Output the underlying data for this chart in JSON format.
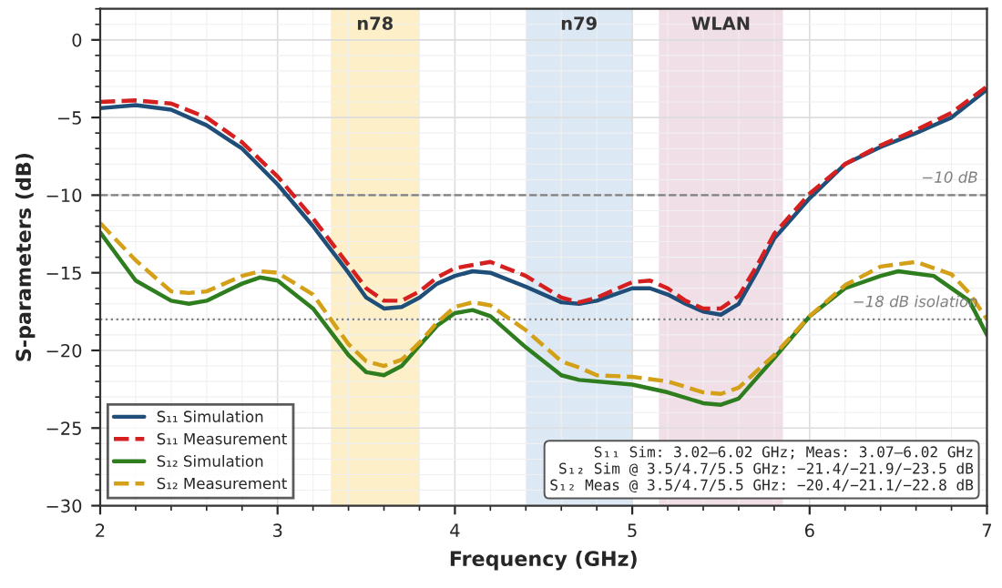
{
  "chart_data": {
    "type": "line",
    "xlabel": "Frequency (GHz)",
    "ylabel": "S-parameters (dB)",
    "xlim": [
      2,
      7
    ],
    "xticks": [
      2,
      3,
      4,
      5,
      6,
      7
    ],
    "ylim": [
      -30,
      2
    ],
    "yticks": [
      0,
      -5,
      -10,
      -15,
      -20,
      -25,
      -30
    ],
    "grid": true,
    "legend": "bottom left",
    "series": [
      {
        "name": "S₁₁ Simulation",
        "color": "#1f4e79",
        "line_style": "solid",
        "x": [
          2.0,
          2.2,
          2.4,
          2.6,
          2.8,
          3.0,
          3.2,
          3.4,
          3.5,
          3.6,
          3.7,
          3.8,
          3.9,
          4.0,
          4.1,
          4.2,
          4.4,
          4.6,
          4.7,
          4.8,
          5.0,
          5.1,
          5.2,
          5.3,
          5.4,
          5.5,
          5.6,
          5.7,
          5.8,
          6.0,
          6.2,
          6.4,
          6.6,
          6.8,
          7.0
        ],
        "values": [
          -4.4,
          -4.2,
          -4.5,
          -5.5,
          -7.0,
          -9.3,
          -12,
          -15,
          -16.6,
          -17.3,
          -17.2,
          -16.6,
          -15.7,
          -15.2,
          -14.9,
          -15.0,
          -15.9,
          -16.9,
          -17.0,
          -16.8,
          -16.0,
          -16.0,
          -16.4,
          -17.0,
          -17.5,
          -17.7,
          -17.0,
          -15.0,
          -12.8,
          -10.2,
          -8.0,
          -6.9,
          -6.0,
          -5.0,
          -3.2
        ]
      },
      {
        "name": "S₁₁ Measurement",
        "color": "#d62020",
        "line_style": "dashed",
        "x": [
          2.0,
          2.2,
          2.4,
          2.6,
          2.8,
          3.0,
          3.2,
          3.4,
          3.5,
          3.6,
          3.7,
          3.8,
          3.9,
          4.0,
          4.2,
          4.4,
          4.6,
          4.7,
          4.8,
          5.0,
          5.1,
          5.2,
          5.3,
          5.4,
          5.5,
          5.6,
          5.7,
          5.8,
          6.0,
          6.2,
          6.4,
          6.6,
          6.8,
          7.0
        ],
        "values": [
          -4.0,
          -3.9,
          -4.1,
          -5.0,
          -6.6,
          -8.8,
          -11.5,
          -14.5,
          -16.0,
          -16.8,
          -16.8,
          -16.2,
          -15.3,
          -14.7,
          -14.3,
          -15.2,
          -16.6,
          -16.9,
          -16.6,
          -15.6,
          -15.5,
          -16.0,
          -16.8,
          -17.3,
          -17.3,
          -16.5,
          -14.6,
          -12.5,
          -9.9,
          -8.0,
          -6.8,
          -5.8,
          -4.7,
          -3.0
        ]
      },
      {
        "name": "S₁₂ Simulation",
        "color": "#2e7d1e",
        "line_style": "solid",
        "x": [
          2.0,
          2.2,
          2.4,
          2.5,
          2.6,
          2.8,
          2.9,
          3.0,
          3.2,
          3.4,
          3.5,
          3.6,
          3.7,
          3.8,
          3.9,
          4.0,
          4.1,
          4.2,
          4.4,
          4.6,
          4.7,
          4.9,
          5.0,
          5.2,
          5.4,
          5.5,
          5.6,
          5.8,
          6.0,
          6.2,
          6.4,
          6.5,
          6.7,
          6.9,
          7.0
        ],
        "values": [
          -12.4,
          -15.5,
          -16.8,
          -17.0,
          -16.8,
          -15.7,
          -15.3,
          -15.5,
          -17.3,
          -20.3,
          -21.4,
          -21.6,
          -21.0,
          -19.7,
          -18.4,
          -17.6,
          -17.4,
          -17.8,
          -19.8,
          -21.6,
          -21.9,
          -22.1,
          -22.2,
          -22.7,
          -23.4,
          -23.5,
          -23.1,
          -20.5,
          -17.8,
          -16.0,
          -15.2,
          -14.9,
          -15.2,
          -16.8,
          -19.0
        ]
      },
      {
        "name": "S₁₂ Measurement",
        "color": "#d4a017",
        "line_style": "dashed",
        "x": [
          2.0,
          2.2,
          2.4,
          2.5,
          2.6,
          2.8,
          2.9,
          3.0,
          3.2,
          3.4,
          3.5,
          3.6,
          3.7,
          3.8,
          3.9,
          4.0,
          4.1,
          4.2,
          4.4,
          4.6,
          4.7,
          4.8,
          5.0,
          5.2,
          5.4,
          5.5,
          5.6,
          5.8,
          6.0,
          6.2,
          6.4,
          6.6,
          6.8,
          6.9,
          7.0
        ],
        "values": [
          -11.8,
          -14.2,
          -16.2,
          -16.3,
          -16.2,
          -15.2,
          -14.9,
          -15.0,
          -16.4,
          -19.6,
          -20.7,
          -21.0,
          -20.6,
          -19.5,
          -18.2,
          -17.2,
          -16.9,
          -17.1,
          -18.7,
          -20.7,
          -21.1,
          -21.6,
          -21.7,
          -22.0,
          -22.7,
          -22.8,
          -22.4,
          -20.3,
          -17.8,
          -15.8,
          -14.6,
          -14.3,
          -15.1,
          -16.3,
          -18.0
        ]
      }
    ],
    "ref_lines": [
      {
        "axis": "y",
        "value": -10,
        "label": "−10 dB",
        "color": "#808080",
        "line_style": "dashed"
      },
      {
        "axis": "y",
        "value": -18,
        "label": "−18 dB isolation",
        "color": "#808080",
        "line_style": "dotted"
      }
    ],
    "bands": [
      {
        "axis": "x",
        "from": 3.3,
        "to": 3.8,
        "label": "n78",
        "color": "#fdf0c8"
      },
      {
        "axis": "x",
        "from": 4.4,
        "to": 5.0,
        "label": "n79",
        "color": "#dce9f5"
      },
      {
        "axis": "x",
        "from": 5.15,
        "to": 5.85,
        "label": "WLAN",
        "color": "#f1dfe8"
      }
    ],
    "annotations": [
      "S₁₁ Sim: 3.02–6.02 GHz; Meas: 3.07–6.02 GHz",
      "S₁₂ Sim @ 3.5/4.7/5.5 GHz: −21.4/−21.9/−23.5 dB",
      "S₁₂ Meas @ 3.5/4.7/5.5 GHz: −20.4/−21.1/−22.8 dB"
    ]
  }
}
